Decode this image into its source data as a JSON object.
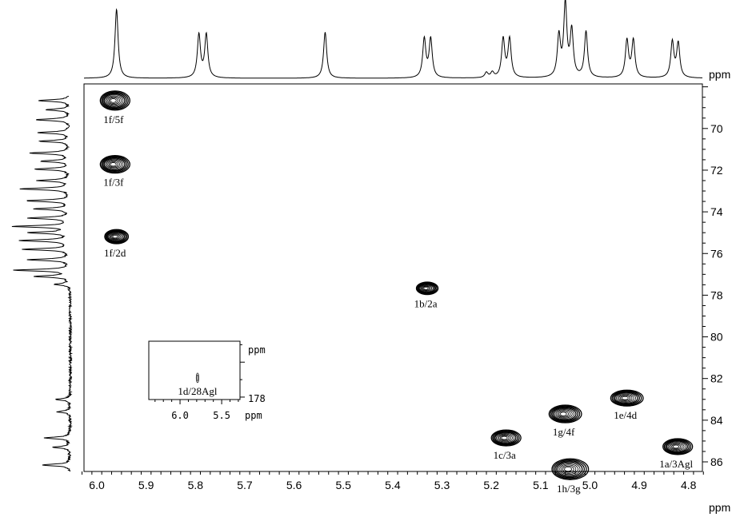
{
  "chart_data": {
    "type": "contour",
    "title": "",
    "xlabel": "ppm",
    "ylabel": "ppm",
    "xlim": [
      6.026,
      4.772
    ],
    "ylim": [
      67.86,
      86.46
    ],
    "x_ticks": [
      6.0,
      5.9,
      5.8,
      5.7,
      5.6,
      5.5,
      5.4,
      5.3,
      5.2,
      5.1,
      5.0,
      4.9,
      4.8
    ],
    "x_tick_labels": [
      "6.0",
      "5.9",
      "5.8",
      "5.7",
      "5.6",
      "5.5",
      "5.4",
      "5.3",
      "5.2",
      "5.1",
      "5.0",
      "4.9",
      "4.8"
    ],
    "y_ticks": [
      70,
      72,
      74,
      76,
      78,
      80,
      82,
      84,
      86
    ],
    "y_tick_labels": [
      "70",
      "72",
      "74",
      "76",
      "78",
      "80",
      "82",
      "84",
      "86"
    ],
    "cross_peaks": [
      {
        "label": "1f/5f",
        "x": 5.963,
        "y": 68.66,
        "wx": 0.03,
        "wy": 0.46
      },
      {
        "label": "1f/3f",
        "x": 5.963,
        "y": 71.72,
        "wx": 0.03,
        "wy": 0.42
      },
      {
        "label": "1f/2d",
        "x": 5.96,
        "y": 75.19,
        "wx": 0.024,
        "wy": 0.34
      },
      {
        "label": "1b/2a",
        "x": 5.33,
        "y": 77.67,
        "wx": 0.022,
        "wy": 0.3
      },
      {
        "label": "1c/3a",
        "x": 5.17,
        "y": 84.85,
        "wx": 0.03,
        "wy": 0.38
      },
      {
        "label": "1g/4f",
        "x": 5.05,
        "y": 83.7,
        "wx": 0.033,
        "wy": 0.42
      },
      {
        "label": "1e/4d",
        "x": 4.925,
        "y": 82.94,
        "wx": 0.033,
        "wy": 0.38
      },
      {
        "label": "1a/3Agl",
        "x": 4.822,
        "y": 85.27,
        "wx": 0.03,
        "wy": 0.38
      },
      {
        "label": "1h/3g",
        "x": 5.04,
        "y": 86.35,
        "wx": 0.037,
        "wy": 0.5
      }
    ],
    "top_projection": {
      "peaks": [
        {
          "x": 5.96,
          "h": 0.93
        },
        {
          "x": 5.793,
          "h": 0.58
        },
        {
          "x": 5.778,
          "h": 0.58
        },
        {
          "x": 5.537,
          "h": 0.62
        },
        {
          "x": 5.336,
          "h": 0.52
        },
        {
          "x": 5.323,
          "h": 0.52
        },
        {
          "x": 5.21,
          "h": 0.07
        },
        {
          "x": 5.198,
          "h": 0.07
        },
        {
          "x": 5.176,
          "h": 0.52
        },
        {
          "x": 5.163,
          "h": 0.52
        },
        {
          "x": 5.063,
          "h": 0.55
        },
        {
          "x": 5.05,
          "h": 0.98
        },
        {
          "x": 5.037,
          "h": 0.62
        },
        {
          "x": 5.008,
          "h": 0.62
        },
        {
          "x": 4.925,
          "h": 0.5
        },
        {
          "x": 4.912,
          "h": 0.5
        },
        {
          "x": 4.833,
          "h": 0.48
        },
        {
          "x": 4.821,
          "h": 0.46
        }
      ]
    },
    "left_projection": {
      "peaks": [
        {
          "y": 68.66,
          "h": 0.55
        },
        {
          "y": 69.1,
          "h": 0.4
        },
        {
          "y": 69.58,
          "h": 0.6
        },
        {
          "y": 70.2,
          "h": 0.55
        },
        {
          "y": 70.61,
          "h": 0.5
        },
        {
          "y": 71.18,
          "h": 0.7
        },
        {
          "y": 71.57,
          "h": 0.5
        },
        {
          "y": 71.95,
          "h": 0.6
        },
        {
          "y": 72.5,
          "h": 0.55
        },
        {
          "y": 72.9,
          "h": 0.85
        },
        {
          "y": 73.47,
          "h": 0.75
        },
        {
          "y": 73.86,
          "h": 0.6
        },
        {
          "y": 74.3,
          "h": 0.7
        },
        {
          "y": 74.7,
          "h": 0.95
        },
        {
          "y": 75.0,
          "h": 0.7
        },
        {
          "y": 75.38,
          "h": 0.85
        },
        {
          "y": 75.8,
          "h": 0.8
        },
        {
          "y": 76.3,
          "h": 0.7
        },
        {
          "y": 76.8,
          "h": 0.95
        },
        {
          "y": 77.1,
          "h": 0.6
        },
        {
          "y": 77.48,
          "h": 0.25
        },
        {
          "y": 83.0,
          "h": 0.25
        },
        {
          "y": 83.6,
          "h": 0.22
        },
        {
          "y": 84.85,
          "h": 0.45
        },
        {
          "y": 85.3,
          "h": 0.3
        },
        {
          "y": 86.15,
          "h": 0.5
        }
      ]
    },
    "inset": {
      "xlim": [
        6.375,
        5.28
      ],
      "ylim": [
        174.8,
        178.14
      ],
      "x_ticks": [
        6.0,
        5.5
      ],
      "x_tick_labels": [
        "6.0",
        "5.5"
      ],
      "y_tick_label": "178",
      "unit": "ppm",
      "peak": {
        "label": "1d/28Agl",
        "x": 5.79,
        "y": 176.9
      }
    }
  }
}
